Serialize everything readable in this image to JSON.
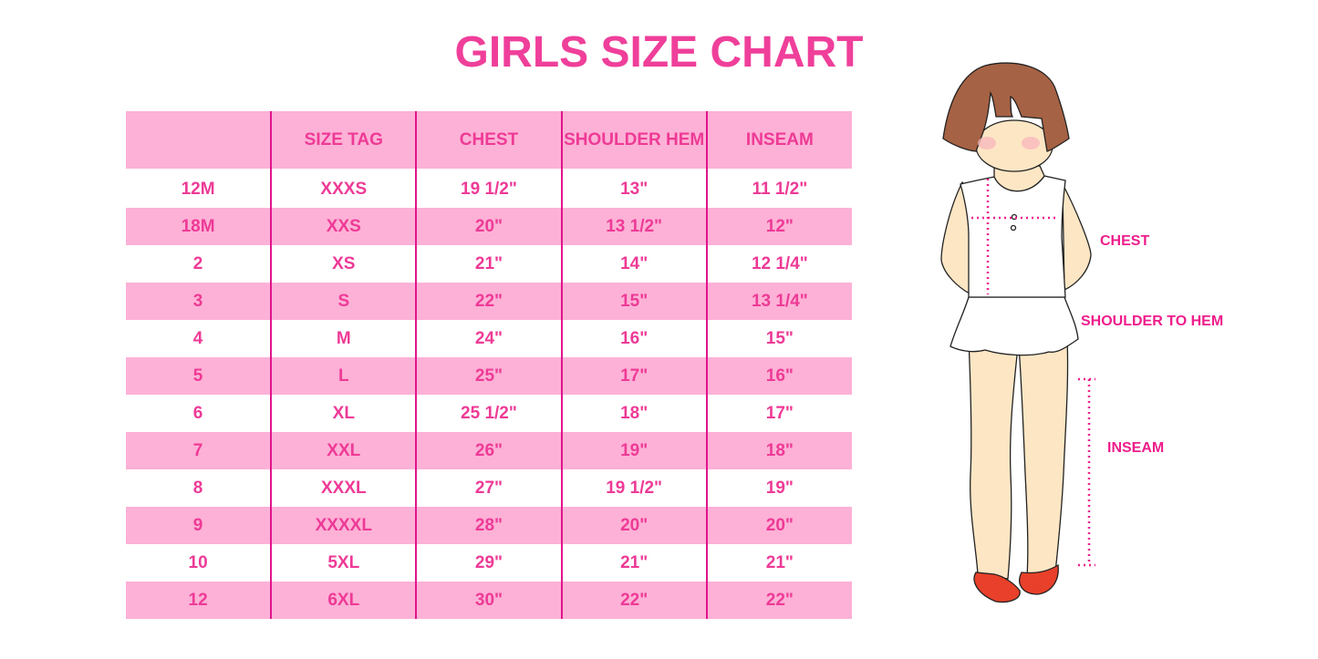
{
  "title": "GIRLS SIZE CHART",
  "table": {
    "headers": [
      "",
      "SIZE TAG",
      "CHEST",
      "SHOULDER HEM",
      "INSEAM"
    ],
    "rows": [
      [
        "12M",
        "XXXS",
        "19 1/2\"",
        "13\"",
        "11 1/2\""
      ],
      [
        "18M",
        "XXS",
        "20\"",
        "13 1/2\"",
        "12\""
      ],
      [
        "2",
        "XS",
        "21\"",
        "14\"",
        "12 1/4\""
      ],
      [
        "3",
        "S",
        "22\"",
        "15\"",
        "13 1/4\""
      ],
      [
        "4",
        "M",
        "24\"",
        "16\"",
        "15\""
      ],
      [
        "5",
        "L",
        "25\"",
        "17\"",
        "16\""
      ],
      [
        "6",
        "XL",
        "25 1/2\"",
        "18\"",
        "17\""
      ],
      [
        "7",
        "XXL",
        "26\"",
        "19\"",
        "18\""
      ],
      [
        "8",
        "XXXL",
        "27\"",
        "19 1/2\"",
        "19\""
      ],
      [
        "9",
        "XXXXL",
        "28\"",
        "20\"",
        "20\""
      ],
      [
        "10",
        "5XL",
        "29\"",
        "21\"",
        "21\""
      ],
      [
        "12",
        "6XL",
        "30\"",
        "22\"",
        "22\""
      ]
    ]
  },
  "diagram": {
    "labels": {
      "chest": "CHEST",
      "shoulder_to_hem": "SHOULDER TO HEM",
      "inseam": "INSEAM"
    }
  },
  "colors": {
    "accent": "#ee3a96",
    "row_fill": "#fdb1d6",
    "divider": "#e0148c",
    "measure_line": "#ee1d8c"
  }
}
